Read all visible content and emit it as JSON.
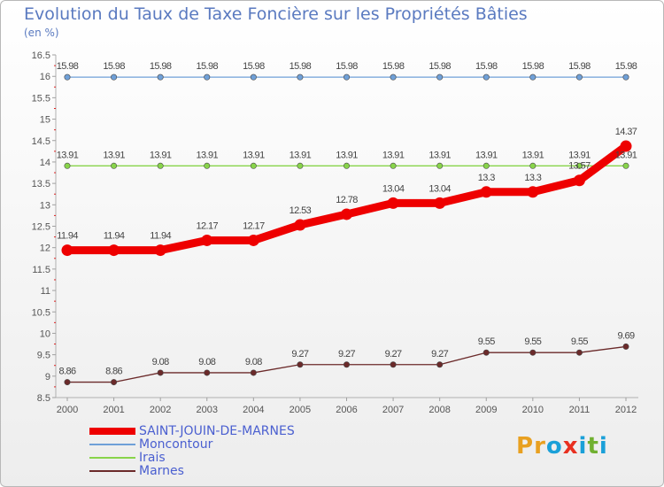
{
  "title": "Evolution du Taux de Taxe Foncière sur les Propriétés Bâties",
  "unit": "(en %)",
  "brand": {
    "text": "Proxiti",
    "colors": [
      "#e8a020",
      "#e8a020",
      "#1aa0d8",
      "#e83020",
      "#1aa0d8",
      "#70b030",
      "#1aa0d8"
    ]
  },
  "chart_data": {
    "type": "line",
    "x": [
      "2000",
      "2001",
      "2002",
      "2003",
      "2004",
      "2005",
      "2006",
      "2007",
      "2008",
      "2009",
      "2010",
      "2011",
      "2012"
    ],
    "ylim": [
      8.5,
      16.5
    ],
    "yticks": [
      "8.5",
      "9",
      "9.5",
      "10",
      "10.5",
      "11",
      "11.5",
      "12",
      "12.5",
      "13",
      "13.5",
      "14",
      "14.5",
      "15",
      "15.5",
      "16",
      "16.5"
    ],
    "grid": false,
    "legend_position": "bottom-left",
    "series": [
      {
        "name": "SAINT-JOUIN-DE-MARNES",
        "color": "#ee0000",
        "values": [
          11.94,
          11.94,
          11.94,
          12.17,
          12.17,
          12.53,
          12.78,
          13.04,
          13.04,
          13.3,
          13.3,
          13.57,
          14.37
        ],
        "labels": [
          "11.94",
          "11.94",
          "11.94",
          "12.17",
          "12.17",
          "12.53",
          "12.78",
          "13.04",
          "13.04",
          "13.3",
          "13.3",
          "13.57",
          "14.37"
        ]
      },
      {
        "name": "Moncontour",
        "color": "#6fa0d8",
        "values": [
          15.98,
          15.98,
          15.98,
          15.98,
          15.98,
          15.98,
          15.98,
          15.98,
          15.98,
          15.98,
          15.98,
          15.98,
          15.98
        ],
        "labels": [
          "15.98",
          "15.98",
          "15.98",
          "15.98",
          "15.98",
          "15.98",
          "15.98",
          "15.98",
          "15.98",
          "15.98",
          "15.98",
          "15.98",
          "15.98"
        ]
      },
      {
        "name": "Irais",
        "color": "#88d44a",
        "values": [
          13.91,
          13.91,
          13.91,
          13.91,
          13.91,
          13.91,
          13.91,
          13.91,
          13.91,
          13.91,
          13.91,
          13.91,
          13.91
        ],
        "labels": [
          "13.91",
          "13.91",
          "13.91",
          "13.91",
          "13.91",
          "13.91",
          "13.91",
          "13.91",
          "13.91",
          "13.91",
          "13.91",
          "13.91",
          "13.91"
        ]
      },
      {
        "name": "Marnes",
        "color": "#6b2a2a",
        "values": [
          8.86,
          8.86,
          9.08,
          9.08,
          9.08,
          9.27,
          9.27,
          9.27,
          9.27,
          9.55,
          9.55,
          9.55,
          9.69
        ],
        "labels": [
          "8.86",
          "8.86",
          "9.08",
          "9.08",
          "9.08",
          "9.27",
          "9.27",
          "9.27",
          "9.27",
          "9.55",
          "9.55",
          "9.55",
          "9.69"
        ]
      }
    ]
  }
}
